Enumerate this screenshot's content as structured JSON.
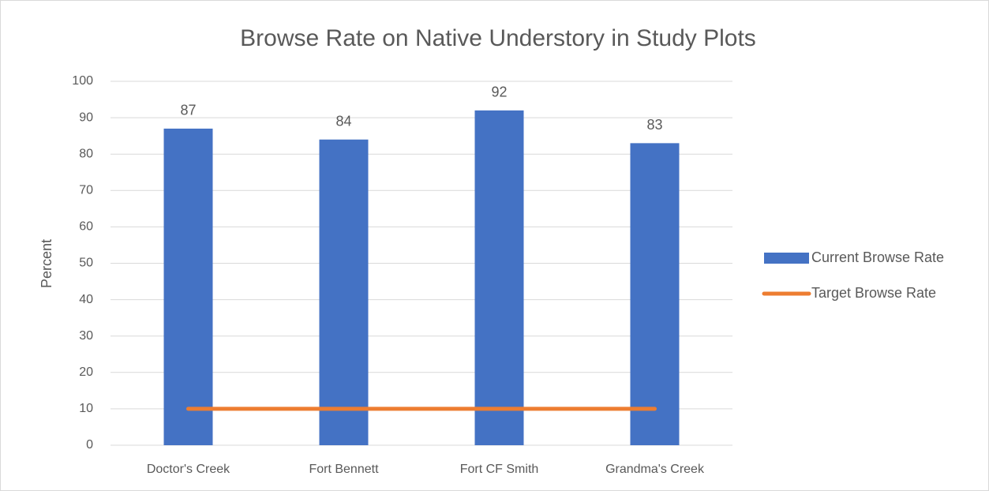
{
  "chart_data": {
    "type": "bar",
    "title": "Browse Rate on Native Understory in Study Plots",
    "ylabel": "Percent",
    "categories": [
      "Doctor's Creek",
      "Fort Bennett",
      "Fort CF Smith",
      "Grandma's Creek"
    ],
    "series": [
      {
        "name": "Current Browse Rate",
        "type": "bar",
        "color": "#4472c4",
        "values": [
          87,
          84,
          92,
          83
        ],
        "data_labels": true
      },
      {
        "name": "Target Browse Rate",
        "type": "line",
        "color": "#ed7d31",
        "values": [
          10,
          10,
          10,
          10
        ]
      }
    ],
    "ylim": [
      0,
      100
    ],
    "yticks": [
      0,
      10,
      20,
      30,
      40,
      50,
      60,
      70,
      80,
      90,
      100
    ],
    "grid": true,
    "legend": "right"
  }
}
